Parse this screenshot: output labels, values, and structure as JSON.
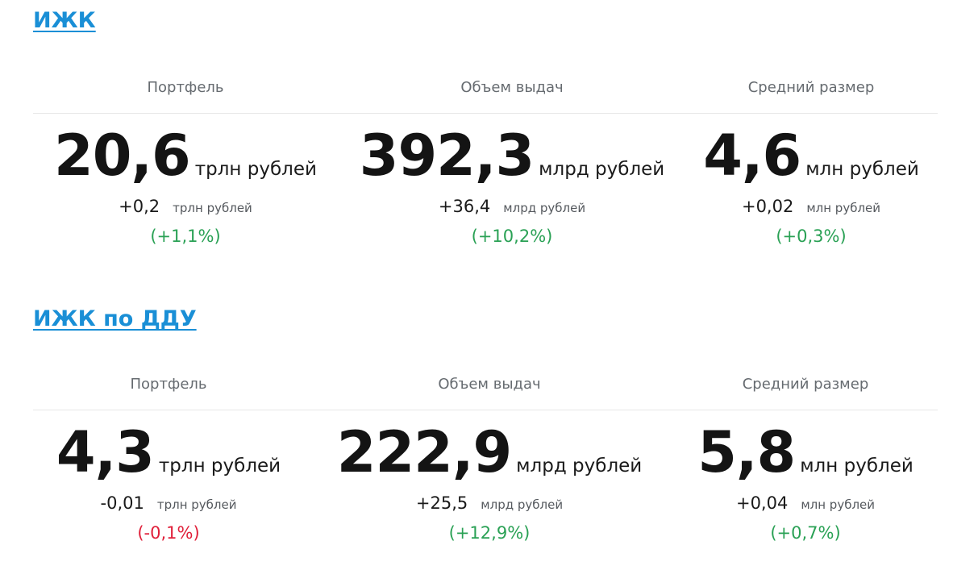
{
  "sections": [
    {
      "title": "ИЖК",
      "columns": [
        {
          "header": "Портфель",
          "value": "20,6",
          "unit": "трлн рублей",
          "delta": "+0,2",
          "delta_unit": "трлн рублей",
          "pct": "(+1,1%)",
          "pct_sign": "positive"
        },
        {
          "header": "Объем выдач",
          "value": "392,3",
          "unit": "млрд рублей",
          "delta": "+36,4",
          "delta_unit": "млрд рублей",
          "pct": "(+10,2%)",
          "pct_sign": "positive"
        },
        {
          "header": "Средний размер",
          "value": "4,6",
          "unit": "млн рублей",
          "delta": "+0,02",
          "delta_unit": "млн рублей",
          "pct": "(+0,3%)",
          "pct_sign": "positive"
        }
      ]
    },
    {
      "title": "ИЖК по ДДУ",
      "columns": [
        {
          "header": "Портфель",
          "value": "4,3",
          "unit": "трлн рублей",
          "delta": "-0,01",
          "delta_unit": "трлн рублей",
          "pct": "(-0,1%)",
          "pct_sign": "negative"
        },
        {
          "header": "Объем выдач",
          "value": "222,9",
          "unit": "млрд рублей",
          "delta": "+25,5",
          "delta_unit": "млрд рублей",
          "pct": "(+12,9%)",
          "pct_sign": "positive"
        },
        {
          "header": "Средний размер",
          "value": "5,8",
          "unit": "млн рублей",
          "delta": "+0,04",
          "delta_unit": "млн рублей",
          "pct": "(+0,7%)",
          "pct_sign": "positive"
        }
      ]
    }
  ],
  "colors": {
    "link": "#1a8fd6",
    "positive": "#2aa155",
    "negative": "#e0203a",
    "header_text": "#666b70",
    "divider": "#e6e6e6"
  }
}
